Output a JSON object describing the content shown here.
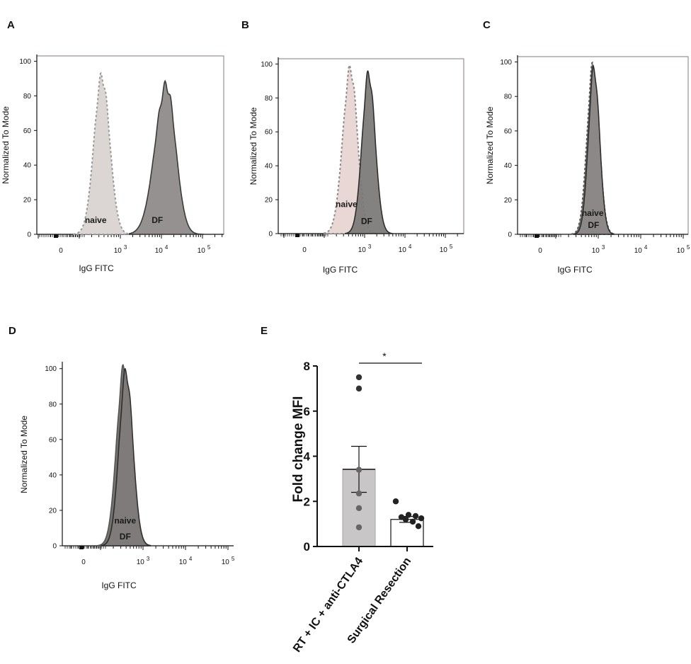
{
  "chart_data": [
    {
      "panel": "A",
      "type": "area",
      "xlabel": "IgG FITC",
      "ylabel": "Normalized To Mode",
      "x_tick_labels": [
        {
          "base": "0",
          "exp": ""
        },
        {
          "base": "10",
          "exp": "3"
        },
        {
          "base": "10",
          "exp": "4"
        },
        {
          "base": "10",
          "exp": "5"
        }
      ],
      "y_ticks": [
        0,
        20,
        40,
        60,
        80,
        100
      ],
      "ylim": [
        0,
        100
      ],
      "series": [
        {
          "name": "naive",
          "peak_x_log": 2.55,
          "peak_y": 91,
          "width": 0.19,
          "skew": 0.0,
          "fill": "#d8d2d0",
          "stroke": "#999999",
          "dashed": true
        },
        {
          "name": "DF",
          "peak_x_log": 4.12,
          "peak_y": 86,
          "width": 0.25,
          "skew": 0.1,
          "fill": "#8c8887",
          "stroke": "#3a3a3a",
          "dashed": false
        }
      ],
      "annotations": [
        {
          "text": "naive",
          "x_log": 2.4,
          "y": 5
        },
        {
          "text": "DF",
          "x_log": 3.9,
          "y": 5
        }
      ]
    },
    {
      "panel": "B",
      "type": "area",
      "xlabel": "IgG FITC",
      "ylabel": "Normalized To Mode",
      "x_tick_labels": [
        {
          "base": "0",
          "exp": ""
        },
        {
          "base": "10",
          "exp": "3"
        },
        {
          "base": "10",
          "exp": "4"
        },
        {
          "base": "10",
          "exp": "5"
        }
      ],
      "y_ticks": [
        0,
        20,
        40,
        60,
        80,
        100
      ],
      "ylim": [
        0,
        100
      ],
      "series": [
        {
          "name": "naive",
          "peak_x_log": 2.65,
          "peak_y": 97,
          "width": 0.18,
          "skew": 0.05,
          "fill": "#e6d4d0",
          "stroke": "#8a8a8a",
          "dashed": true
        },
        {
          "name": "DF",
          "peak_x_log": 3.1,
          "peak_y": 94,
          "width": 0.16,
          "skew": 0.0,
          "fill": "#7a7776",
          "stroke": "#2e2e2e",
          "dashed": false
        }
      ],
      "annotations": [
        {
          "text": "naive",
          "x_log": 2.55,
          "y": 14
        },
        {
          "text": "DF",
          "x_log": 3.05,
          "y": 4
        }
      ]
    },
    {
      "panel": "C",
      "type": "area",
      "xlabel": "IgG FITC",
      "ylabel": "Normalized To Mode",
      "x_tick_labels": [
        {
          "base": "0",
          "exp": ""
        },
        {
          "base": "10",
          "exp": "3"
        },
        {
          "base": "10",
          "exp": "4"
        },
        {
          "base": "10",
          "exp": "5"
        }
      ],
      "y_ticks": [
        0,
        20,
        40,
        60,
        80,
        100
      ],
      "ylim": [
        0,
        100
      ],
      "series": [
        {
          "name": "naive",
          "peak_x_log": 2.88,
          "peak_y": 98,
          "width": 0.14,
          "skew": 0.0,
          "fill": "#6d6a69",
          "stroke": "#555555",
          "dashed": true
        },
        {
          "name": "DF",
          "peak_x_log": 2.9,
          "peak_y": 96,
          "width": 0.13,
          "skew": 0.0,
          "fill": "#8d8a89",
          "stroke": "#2e2e2e",
          "dashed": false
        }
      ],
      "annotations": [
        {
          "text": "naive",
          "x_log": 2.87,
          "y": 9
        },
        {
          "text": "DF",
          "x_log": 2.89,
          "y": 2
        }
      ]
    },
    {
      "panel": "D",
      "type": "area",
      "xlabel": "IgG FITC",
      "ylabel": "Normalized To Mode",
      "x_tick_labels": [
        {
          "base": "0",
          "exp": ""
        },
        {
          "base": "10",
          "exp": "3"
        },
        {
          "base": "10",
          "exp": "4"
        },
        {
          "base": "10",
          "exp": "5"
        }
      ],
      "y_ticks": [
        0,
        20,
        40,
        60,
        80,
        100
      ],
      "ylim": [
        0,
        100
      ],
      "series": [
        {
          "name": "naive",
          "peak_x_log": 2.55,
          "peak_y": 100,
          "width": 0.17,
          "skew": 0.0,
          "fill": "#6a6766",
          "stroke": "#555555",
          "dashed": false
        },
        {
          "name": "DF",
          "peak_x_log": 2.6,
          "peak_y": 98,
          "width": 0.16,
          "skew": 0.0,
          "fill": "#7f7c7b",
          "stroke": "#2e2e2e",
          "dashed": false
        }
      ],
      "annotations": [
        {
          "text": "naive",
          "x_log": 2.58,
          "y": 11
        },
        {
          "text": "DF",
          "x_log": 2.58,
          "y": 2
        }
      ]
    },
    {
      "panel": "E",
      "type": "bar",
      "ylabel": "Fold change MFI",
      "ylim": [
        0,
        8
      ],
      "y_ticks": [
        0,
        2,
        4,
        6,
        8
      ],
      "categories": [
        "RT + IC + anti-CTLA4",
        "Surgical Resection"
      ],
      "values": [
        3.42,
        1.2
      ],
      "sem": [
        1.02,
        0.13
      ],
      "bar_colors": [
        "#c8c6c6",
        "#ffffff"
      ],
      "points": [
        [
          7.5,
          7.0,
          3.4,
          2.35,
          1.7,
          0.85
        ],
        [
          2.0,
          1.4,
          1.35,
          1.3,
          1.25,
          1.2,
          1.1,
          0.9
        ]
      ],
      "significance": "*"
    }
  ]
}
